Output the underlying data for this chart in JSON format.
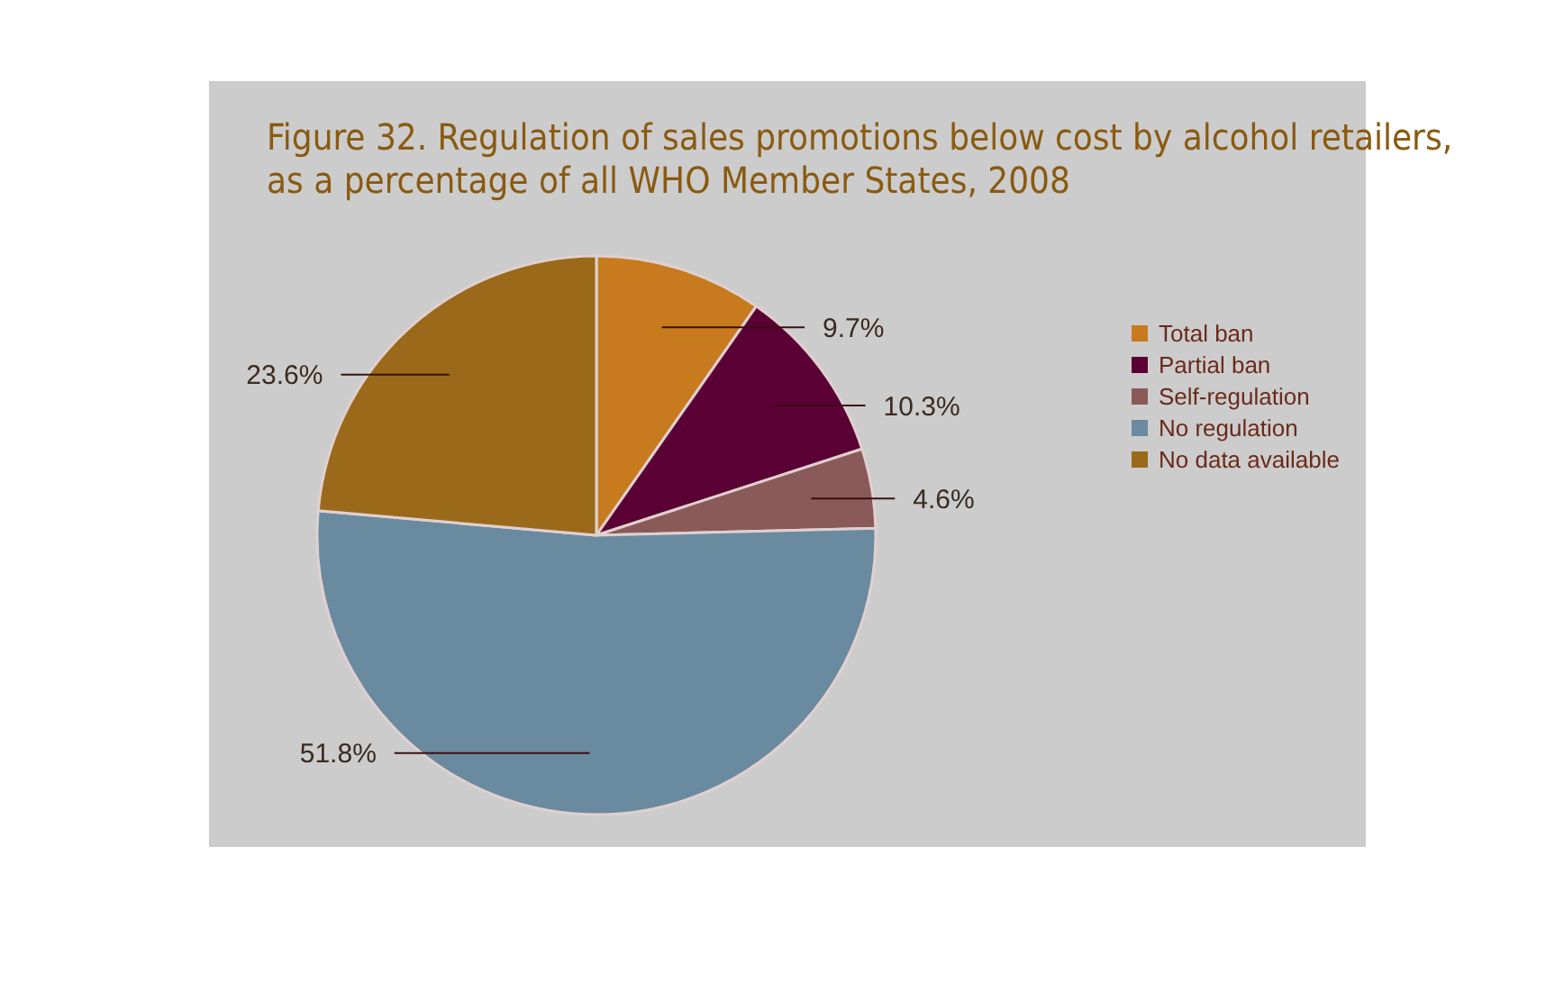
{
  "chart_data": {
    "type": "pie",
    "title": "Figure 32. Regulation of sales promotions below cost by alcohol retailers, as a percentage of all WHO Member States, 2008",
    "categories": [
      "Total ban",
      "Partial ban",
      "Self-regulation",
      "No regulation",
      "No data available"
    ],
    "values": [
      9.7,
      10.3,
      4.6,
      51.8,
      23.6
    ],
    "colors": [
      "#c87a1e",
      "#5a0035",
      "#8a5a58",
      "#6a8aa0",
      "#9a6a1a"
    ],
    "value_labels": [
      "9.7%",
      "10.3%",
      "4.6%",
      "51.8%",
      "23.6%"
    ],
    "legend": "right"
  }
}
